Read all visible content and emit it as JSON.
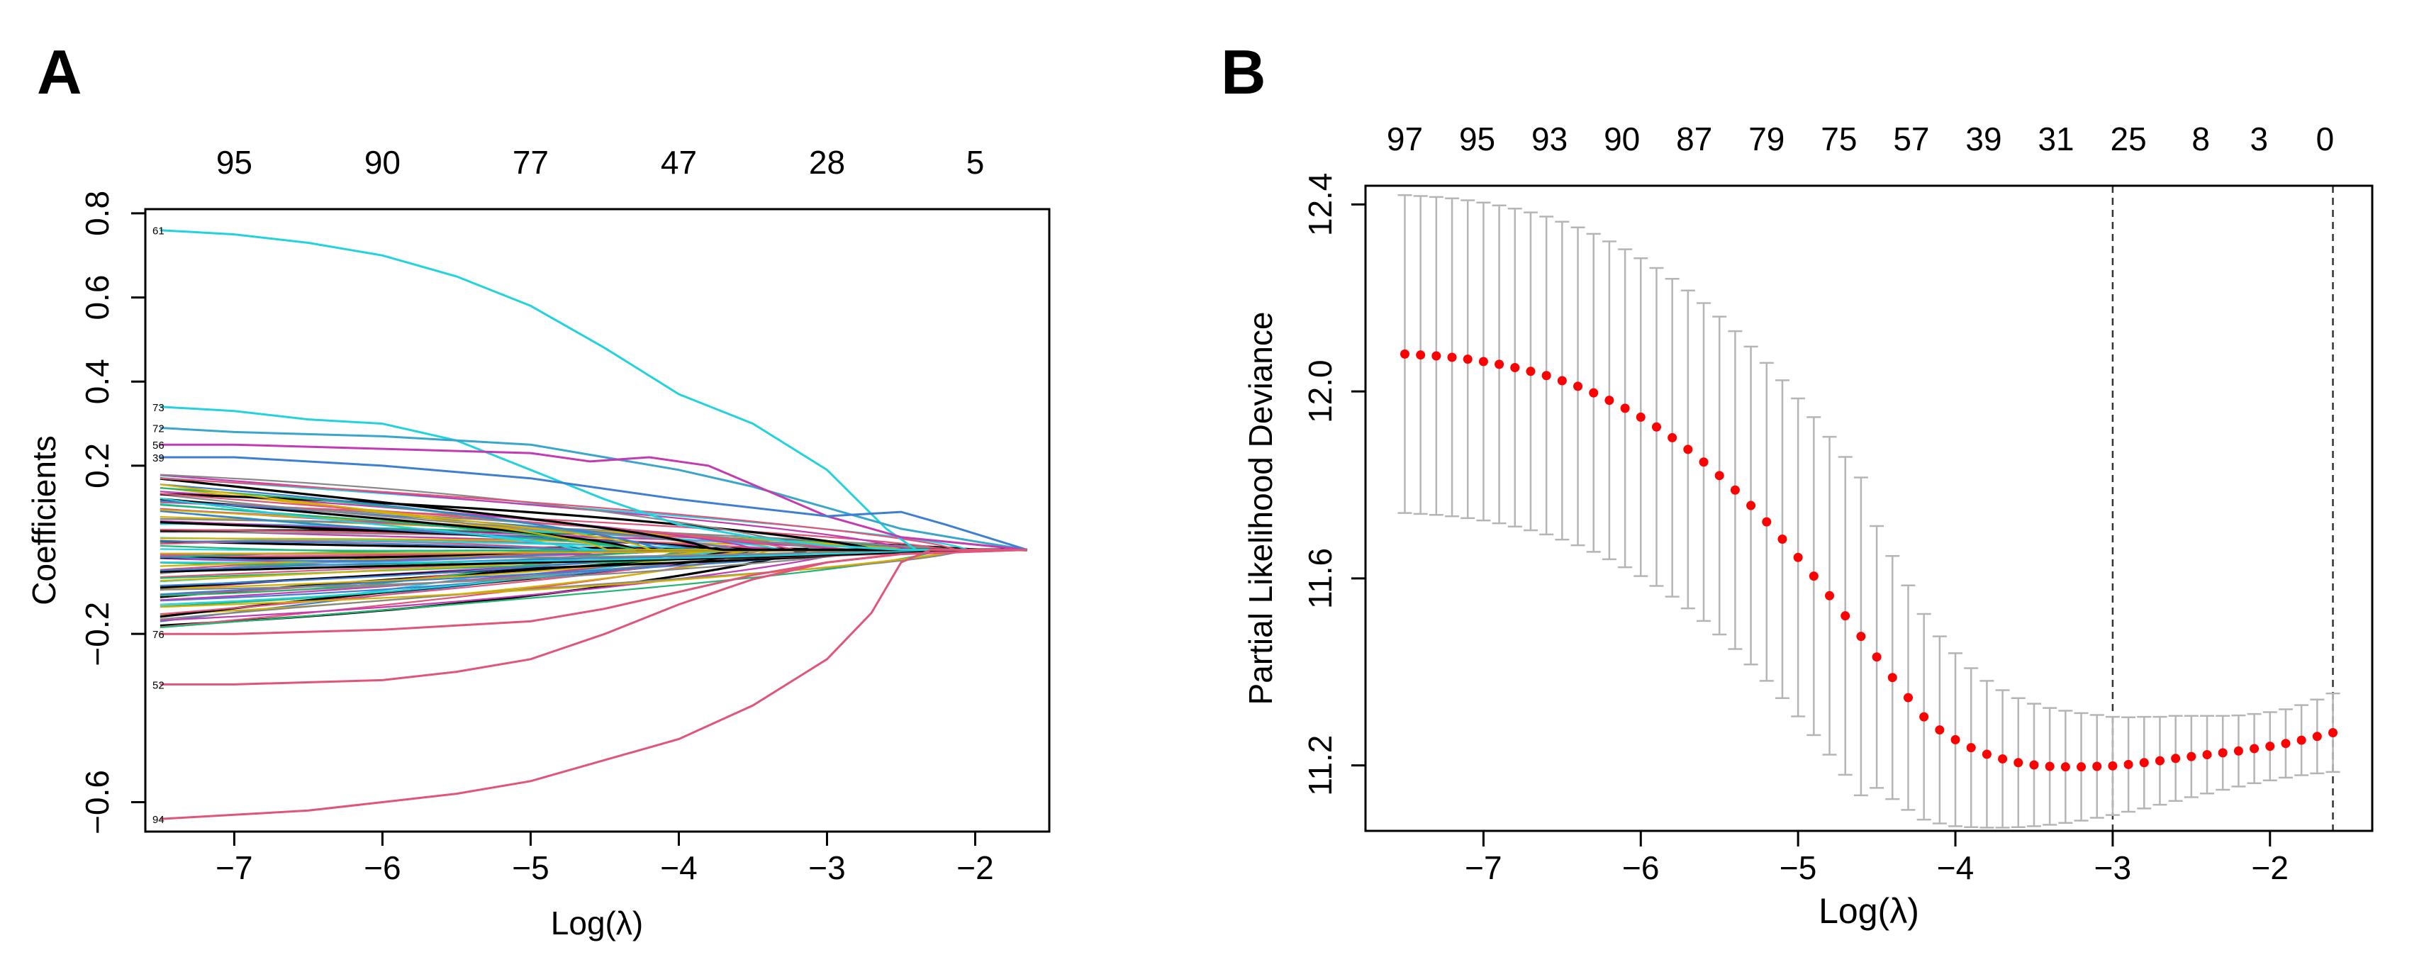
{
  "panels": {
    "A": {
      "letter": "A"
    },
    "B": {
      "letter": "B"
    }
  },
  "chart_data": [
    {
      "id": "A",
      "type": "line",
      "xlabel": "Log(λ)",
      "ylabel": "Coefficients",
      "xlim": [
        -7.6,
        -1.5
      ],
      "ylim": [
        -0.67,
        0.81
      ],
      "x_ticks": [
        -7,
        -6,
        -5,
        -4,
        -3,
        -2
      ],
      "x_tick_labels": [
        "−7",
        "−6",
        "−5",
        "−4",
        "−3",
        "−2"
      ],
      "y_ticks": [
        0.8,
        0.6,
        0.4,
        0.2,
        -0.2,
        -0.6
      ],
      "y_tick_labels": [
        "0.8",
        "0.6",
        "0.4",
        "0.2",
        "−0.2",
        "−0.6"
      ],
      "top_ticks": [
        -7,
        -6,
        -5,
        -4,
        -3,
        -2
      ],
      "top_tick_labels": [
        "95",
        "90",
        "77",
        "47",
        "28",
        "5"
      ],
      "x_start": -7.5,
      "x_end": -1.65,
      "grid": false,
      "highlighted_series": [
        {
          "name": "61",
          "color": "#22d3dd",
          "points": [
            [
              -7.5,
              0.76
            ],
            [
              -7,
              0.75
            ],
            [
              -6.5,
              0.73
            ],
            [
              -6,
              0.7
            ],
            [
              -5.5,
              0.65
            ],
            [
              -5,
              0.58
            ],
            [
              -4.5,
              0.48
            ],
            [
              -4,
              0.37
            ],
            [
              -3.5,
              0.3
            ],
            [
              -3,
              0.19
            ],
            [
              -2.6,
              0.05
            ],
            [
              -2.4,
              0.0
            ],
            [
              -1.65,
              0.0
            ]
          ]
        },
        {
          "name": "73",
          "color": "#22d3dd",
          "points": [
            [
              -7.5,
              0.34
            ],
            [
              -7,
              0.33
            ],
            [
              -6.5,
              0.31
            ],
            [
              -6,
              0.3
            ],
            [
              -5.5,
              0.26
            ],
            [
              -5,
              0.19
            ],
            [
              -4.5,
              0.12
            ],
            [
              -4,
              0.06
            ],
            [
              -3.5,
              0.03
            ],
            [
              -3,
              0.01
            ],
            [
              -2.5,
              0.0
            ],
            [
              -1.65,
              0.0
            ]
          ]
        },
        {
          "name": "72",
          "color": "#3aa6c9",
          "points": [
            [
              -7.5,
              0.29
            ],
            [
              -7,
              0.28
            ],
            [
              -6,
              0.27
            ],
            [
              -5,
              0.25
            ],
            [
              -4.5,
              0.22
            ],
            [
              -4,
              0.19
            ],
            [
              -3.5,
              0.15
            ],
            [
              -3,
              0.1
            ],
            [
              -2.5,
              0.05
            ],
            [
              -2,
              0.02
            ],
            [
              -1.65,
              0.0
            ]
          ]
        },
        {
          "name": "56",
          "color": "#c23bb2",
          "points": [
            [
              -7.5,
              0.25
            ],
            [
              -7,
              0.25
            ],
            [
              -6,
              0.24
            ],
            [
              -5,
              0.23
            ],
            [
              -4.6,
              0.21
            ],
            [
              -4.2,
              0.22
            ],
            [
              -3.8,
              0.2
            ],
            [
              -3.4,
              0.14
            ],
            [
              -3,
              0.08
            ],
            [
              -2.5,
              0.03
            ],
            [
              -1.65,
              0.0
            ]
          ]
        },
        {
          "name": "39",
          "color": "#3f7fd1",
          "points": [
            [
              -7.5,
              0.22
            ],
            [
              -7,
              0.22
            ],
            [
              -6,
              0.2
            ],
            [
              -5,
              0.17
            ],
            [
              -4,
              0.12
            ],
            [
              -3,
              0.08
            ],
            [
              -2.5,
              0.09
            ],
            [
              -2.2,
              0.06
            ],
            [
              -1.65,
              0.0
            ]
          ]
        },
        {
          "name": "52",
          "color": "#e0557a",
          "points": [
            [
              -7.5,
              -0.32
            ],
            [
              -7,
              -0.32
            ],
            [
              -6,
              -0.31
            ],
            [
              -5.5,
              -0.29
            ],
            [
              -5,
              -0.26
            ],
            [
              -4.5,
              -0.2
            ],
            [
              -4,
              -0.13
            ],
            [
              -3.5,
              -0.07
            ],
            [
              -3,
              -0.03
            ],
            [
              -2.5,
              -0.01
            ],
            [
              -1.65,
              0.0
            ]
          ]
        },
        {
          "name": "76",
          "color": "#e0557a",
          "points": [
            [
              -7.5,
              -0.2
            ],
            [
              -7,
              -0.2
            ],
            [
              -6,
              -0.19
            ],
            [
              -5,
              -0.17
            ],
            [
              -4.5,
              -0.14
            ],
            [
              -4,
              -0.1
            ],
            [
              -3.5,
              -0.06
            ],
            [
              -3,
              -0.03
            ],
            [
              -2.5,
              -0.01
            ],
            [
              -1.65,
              0.0
            ]
          ]
        },
        {
          "name": "94",
          "color": "#e0557a",
          "points": [
            [
              -7.5,
              -0.64
            ],
            [
              -7,
              -0.63
            ],
            [
              -6.5,
              -0.62
            ],
            [
              -6,
              -0.6
            ],
            [
              -5.5,
              -0.58
            ],
            [
              -5,
              -0.55
            ],
            [
              -4.5,
              -0.5
            ],
            [
              -4,
              -0.45
            ],
            [
              -3.5,
              -0.37
            ],
            [
              -3,
              -0.26
            ],
            [
              -2.7,
              -0.15
            ],
            [
              -2.5,
              -0.03
            ],
            [
              -2.3,
              0.0
            ],
            [
              -1.65,
              0.0
            ]
          ]
        }
      ],
      "left_labels": [
        "61",
        "73",
        "72",
        "56",
        "39",
        "52",
        "76",
        "94"
      ],
      "bundle_palette": [
        "#000000",
        "#e0557a",
        "#22b573",
        "#3f7fd1",
        "#22d3dd",
        "#c23bb2",
        "#d4b000",
        "#888888"
      ],
      "bundle_count": 90
    },
    {
      "id": "B",
      "type": "scatter",
      "xlabel": "Log(λ)",
      "ylabel": "Partial Likelihood Deviance",
      "xlim": [
        -7.75,
        -1.35
      ],
      "ylim": [
        11.06,
        12.44
      ],
      "x_ticks": [
        -7,
        -6,
        -5,
        -4,
        -3,
        -2
      ],
      "x_tick_labels": [
        "−7",
        "−6",
        "−5",
        "−4",
        "−3",
        "−2"
      ],
      "y_ticks": [
        11.2,
        11.6,
        12.0,
        12.4
      ],
      "y_tick_labels": [
        "11.2",
        "11.6",
        "12.0",
        "12.4"
      ],
      "top_ticks": [
        -7.5,
        -7.04,
        -6.58,
        -6.12,
        -5.66,
        -5.2,
        -4.74,
        -4.28,
        -3.82,
        -3.36,
        -2.9,
        -2.44,
        -2.07,
        -1.65
      ],
      "top_tick_labels": [
        "97",
        "95",
        "93",
        "90",
        "87",
        "79",
        "75",
        "57",
        "39",
        "31",
        "25",
        "8",
        "3",
        "0"
      ],
      "vlines": [
        -3.0,
        -1.6
      ],
      "grid": false,
      "point_color": "#ff0000",
      "errorbar_color": "#b5b5b5",
      "x": [
        -7.5,
        -7.4,
        -7.3,
        -7.2,
        -7.1,
        -7.0,
        -6.9,
        -6.8,
        -6.7,
        -6.6,
        -6.5,
        -6.4,
        -6.3,
        -6.2,
        -6.1,
        -6.0,
        -5.9,
        -5.8,
        -5.7,
        -5.6,
        -5.5,
        -5.4,
        -5.3,
        -5.2,
        -5.1,
        -5.0,
        -4.9,
        -4.8,
        -4.7,
        -4.6,
        -4.5,
        -4.4,
        -4.3,
        -4.2,
        -4.1,
        -4.0,
        -3.9,
        -3.8,
        -3.7,
        -3.6,
        -3.5,
        -3.4,
        -3.3,
        -3.2,
        -3.1,
        -3.0,
        -2.9,
        -2.8,
        -2.7,
        -2.6,
        -2.5,
        -2.4,
        -2.3,
        -2.2,
        -2.1,
        -2.0,
        -1.9,
        -1.8,
        -1.7,
        -1.6
      ],
      "y": [
        12.08,
        12.078,
        12.076,
        12.073,
        12.069,
        12.064,
        12.058,
        12.051,
        12.043,
        12.034,
        12.023,
        12.011,
        11.997,
        11.981,
        11.964,
        11.945,
        11.924,
        11.901,
        11.876,
        11.849,
        11.82,
        11.789,
        11.756,
        11.721,
        11.684,
        11.645,
        11.605,
        11.563,
        11.52,
        11.476,
        11.432,
        11.388,
        11.345,
        11.304,
        11.276,
        11.255,
        11.238,
        11.224,
        11.214,
        11.206,
        11.201,
        11.198,
        11.197,
        11.197,
        11.198,
        11.199,
        11.202,
        11.206,
        11.21,
        11.215,
        11.219,
        11.223,
        11.227,
        11.231,
        11.236,
        11.241,
        11.247,
        11.254,
        11.262,
        11.27
      ],
      "lower": [
        11.74,
        11.738,
        11.736,
        11.733,
        11.729,
        11.724,
        11.718,
        11.711,
        11.703,
        11.694,
        11.683,
        11.671,
        11.657,
        11.641,
        11.624,
        11.605,
        11.584,
        11.561,
        11.536,
        11.509,
        11.48,
        11.449,
        11.416,
        11.381,
        11.344,
        11.305,
        11.265,
        11.223,
        11.18,
        11.136,
        11.152,
        11.128,
        11.105,
        11.084,
        11.076,
        11.07,
        11.068,
        11.067,
        11.067,
        11.068,
        11.07,
        11.073,
        11.077,
        11.082,
        11.088,
        11.094,
        11.101,
        11.108,
        11.116,
        11.124,
        11.132,
        11.14,
        11.148,
        11.155,
        11.162,
        11.168,
        11.174,
        11.179,
        11.183,
        11.186
      ],
      "upper": [
        12.42,
        12.418,
        12.416,
        12.413,
        12.409,
        12.404,
        12.398,
        12.391,
        12.383,
        12.374,
        12.363,
        12.351,
        12.337,
        12.321,
        12.304,
        12.285,
        12.264,
        12.241,
        12.216,
        12.189,
        12.16,
        12.129,
        12.096,
        12.061,
        12.024,
        11.985,
        11.945,
        11.903,
        11.86,
        11.816,
        11.712,
        11.648,
        11.585,
        11.524,
        11.476,
        11.44,
        11.408,
        11.381,
        11.361,
        11.344,
        11.332,
        11.323,
        11.317,
        11.312,
        11.308,
        11.304,
        11.303,
        11.304,
        11.304,
        11.306,
        11.306,
        11.306,
        11.306,
        11.307,
        11.31,
        11.314,
        11.32,
        11.329,
        11.341,
        11.354
      ]
    }
  ]
}
